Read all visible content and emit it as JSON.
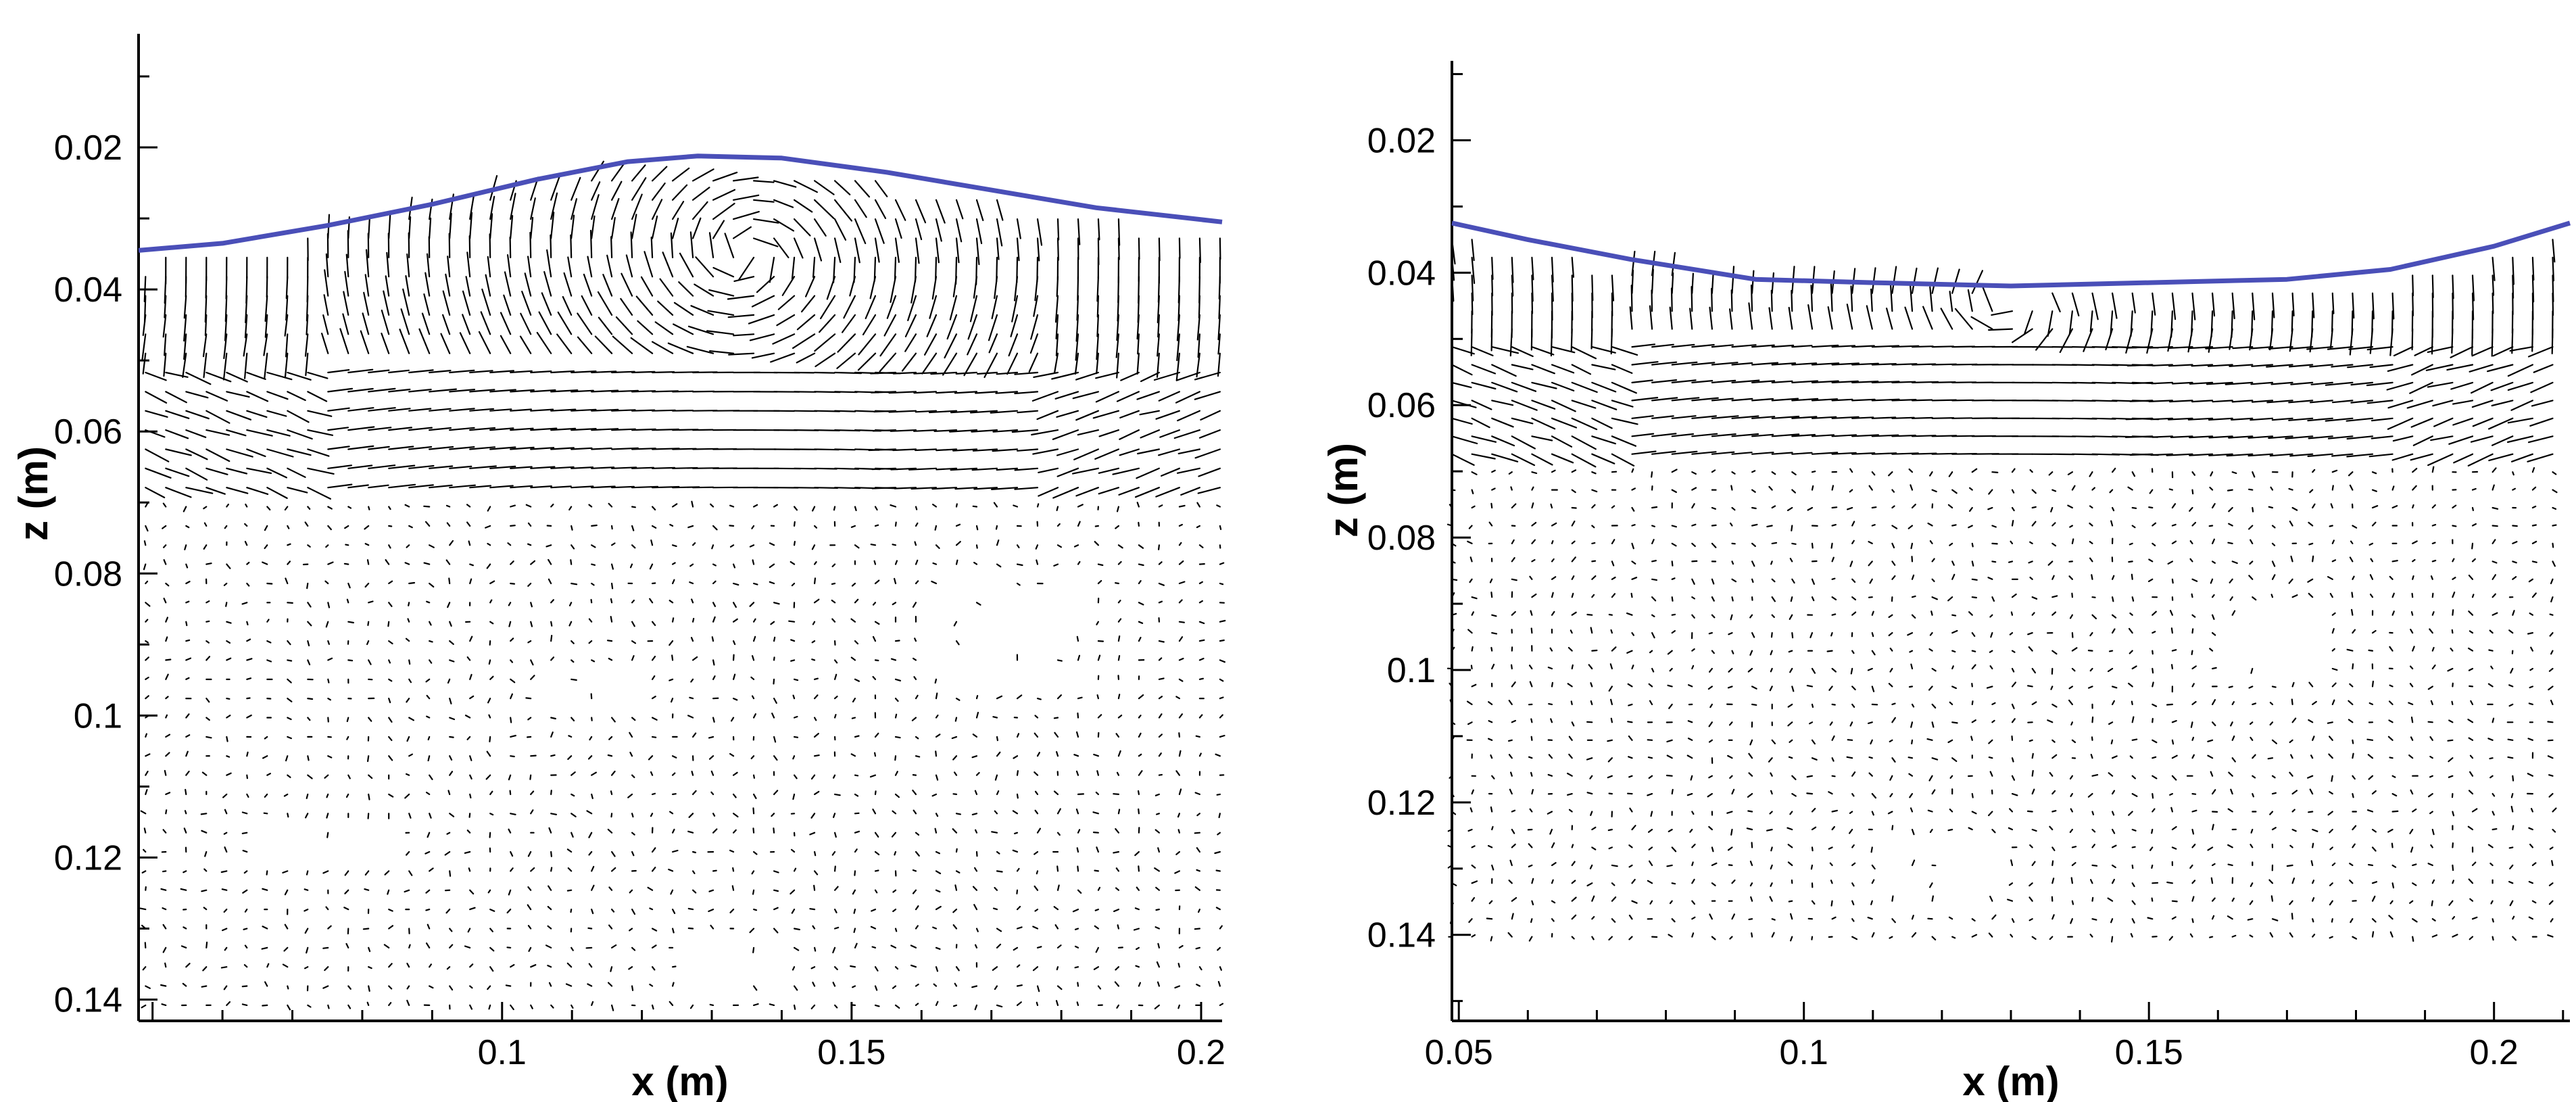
{
  "chart_data": [
    {
      "type": "quiver",
      "panel": "left",
      "xlabel": "x (m)",
      "ylabel": "z (m)",
      "xlim": [
        0.048,
        0.203
      ],
      "ylim": [
        0.143,
        0.004
      ],
      "y_inverted": true,
      "xticks": [
        0.1,
        0.15,
        0.2
      ],
      "xtick_labels": [
        "0.1",
        "0.15",
        "0.2"
      ],
      "yticks": [
        0.02,
        0.04,
        0.06,
        0.08,
        0.1,
        0.12,
        0.14
      ],
      "ytick_labels": [
        "0.02",
        "0.04",
        "0.06",
        "0.08",
        "0.1",
        "0.12",
        "0.14"
      ],
      "grid": false,
      "free_surface": {
        "color": "#4a4fb8",
        "x": [
          0.048,
          0.06,
          0.075,
          0.09,
          0.105,
          0.118,
          0.128,
          0.14,
          0.155,
          0.17,
          0.185,
          0.203
        ],
        "z": [
          0.0345,
          0.0335,
          0.031,
          0.028,
          0.0245,
          0.022,
          0.0212,
          0.0215,
          0.0235,
          0.026,
          0.0285,
          0.0305
        ]
      },
      "vector_field": {
        "color": "#000000",
        "description_free": true,
        "x_range": [
          0.049,
          0.203
        ],
        "z_range": [
          0.022,
          0.142
        ],
        "surface_layer_bottom_z": 0.068,
        "surface_eddy_center": [
          0.135,
          0.035
        ],
        "deep_eddies": [
          [
            0.06,
            0.11
          ],
          [
            0.2,
            0.106
          ]
        ],
        "empty_zones": [
          [
            0.065,
            0.085,
            0.115,
            0.12
          ],
          [
            0.105,
            0.12,
            0.093,
            0.1
          ],
          [
            0.16,
            0.185,
            0.08,
            0.095
          ],
          [
            0.125,
            0.14,
            0.132,
            0.14
          ]
        ]
      }
    },
    {
      "type": "quiver",
      "panel": "right",
      "xlabel": "x (m)",
      "ylabel": "z (m)",
      "xlim": [
        0.049,
        0.211
      ],
      "ylim": [
        0.153,
        0.008
      ],
      "y_inverted": true,
      "xticks": [
        0.05,
        0.1,
        0.15,
        0.2
      ],
      "xtick_labels": [
        "0.05",
        "0.1",
        "0.15",
        "0.2"
      ],
      "yticks": [
        0.02,
        0.04,
        0.06,
        0.08,
        0.1,
        0.12,
        0.14
      ],
      "ytick_labels": [
        "0.02",
        "0.04",
        "0.06",
        "0.08",
        "0.1",
        "0.12",
        "0.14"
      ],
      "grid": false,
      "free_surface": {
        "color": "#4a4fb8",
        "x": [
          0.049,
          0.06,
          0.075,
          0.093,
          0.11,
          0.13,
          0.15,
          0.17,
          0.185,
          0.2,
          0.211
        ],
        "z": [
          0.0325,
          0.035,
          0.038,
          0.041,
          0.0415,
          0.042,
          0.0415,
          0.041,
          0.0395,
          0.036,
          0.0325
        ]
      },
      "vector_field": {
        "color": "#000000",
        "x_range": [
          0.049,
          0.211
        ],
        "z_range": [
          0.035,
          0.141
        ],
        "surface_layer_bottom_z": 0.068,
        "surface_eddy_center": [
          0.13,
          0.045
        ],
        "deep_eddies": [
          [
            0.078,
            0.095
          ],
          [
            0.205,
            0.088
          ]
        ],
        "empty_zones": [
          [
            0.11,
            0.13,
            0.125,
            0.135
          ],
          [
            0.16,
            0.175,
            0.09,
            0.1
          ]
        ]
      }
    }
  ]
}
